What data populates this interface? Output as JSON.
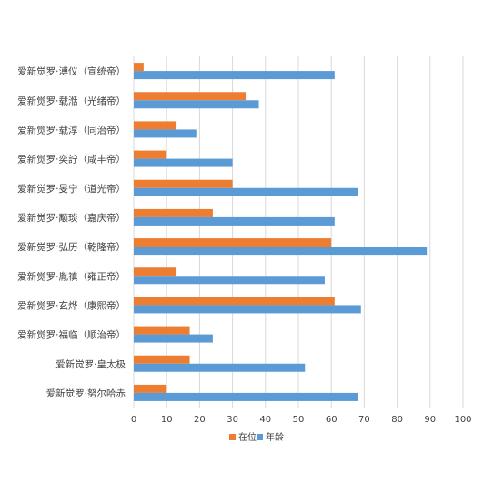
{
  "chart_data": {
    "type": "bar",
    "orientation": "horizontal",
    "title": "",
    "xlabel": "",
    "ylabel": "",
    "categories": [
      "爱新觉罗·溥仪（宣统帝）",
      "爱新觉罗·载湉（光绪帝）",
      "爱新觉罗·载淳（同治帝）",
      "爱新觉罗·奕詝（咸丰帝）",
      "爱新觉罗·旻宁（道光帝）",
      "爱新觉罗·颙琰（嘉庆帝）",
      "爱新觉罗·弘历（乾隆帝）",
      "爱新觉罗·胤禛（雍正帝）",
      "爱新觉罗·玄烨（康熙帝）",
      "爱新觉罗·福临（顺治帝）",
      "爱新觉罗·皇太极",
      "爱新觉罗·努尔哈赤"
    ],
    "series": [
      {
        "name": "在位",
        "color": "#ED7D31",
        "values": [
          3,
          34,
          13,
          10,
          30,
          24,
          60,
          13,
          61,
          17,
          17,
          10
        ]
      },
      {
        "name": "年龄",
        "color": "#5B9BD5",
        "values": [
          61,
          38,
          19,
          30,
          68,
          61,
          89,
          58,
          69,
          24,
          52,
          68
        ]
      }
    ],
    "xlim": [
      0,
      100
    ],
    "xticks": [
      0,
      10,
      20,
      30,
      40,
      50,
      60,
      70,
      80,
      90,
      100
    ],
    "grid": true,
    "legend": "bottom"
  }
}
